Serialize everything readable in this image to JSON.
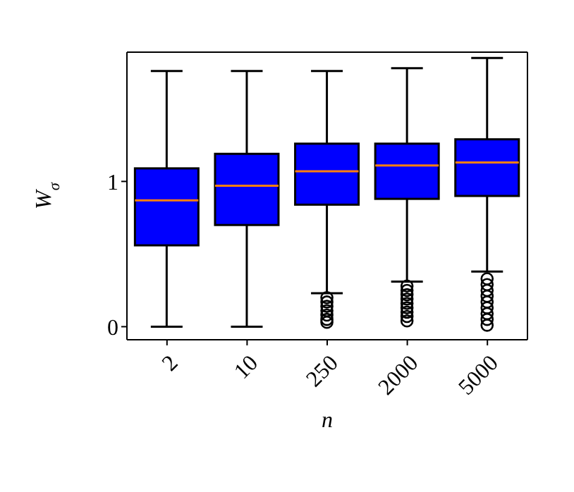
{
  "chart_data": {
    "type": "box",
    "xlabel": "n",
    "ylabel": "W$_{σ}$",
    "categories": [
      "2",
      "10",
      "250",
      "2000",
      "5000"
    ],
    "series": [
      {
        "color": "#0000ff",
        "boxes": [
          {
            "low": 0,
            "q1": 0.56,
            "median": 0.87,
            "q3": 1.09,
            "high": 1.76
          },
          {
            "low": 0,
            "q1": 0.7,
            "median": 0.97,
            "q3": 1.19,
            "high": 1.76
          },
          {
            "low": 0.23,
            "q1": 0.84,
            "median": 1.07,
            "q3": 1.26,
            "high": 1.76,
            "outliers": [
              0.2,
              0.17,
              0.14,
              0.11,
              0.08,
              0.05,
              0.03
            ]
          },
          {
            "low": 0.31,
            "q1": 0.88,
            "median": 1.11,
            "q3": 1.26,
            "high": 1.78,
            "outliers": [
              0.28,
              0.25,
              0.22,
              0.19,
              0.16,
              0.13,
              0.1,
              0.07,
              0.04
            ]
          },
          {
            "low": 0.38,
            "q1": 0.9,
            "median": 1.13,
            "q3": 1.29,
            "high": 1.85,
            "outliers": [
              0.33,
              0.29,
              0.25,
              0.21,
              0.17,
              0.13,
              0.09,
              0.05,
              0.01
            ]
          }
        ]
      }
    ],
    "ylim": [
      -0.09,
      1.89
    ],
    "yticks": [
      0,
      1
    ],
    "grid": false
  }
}
